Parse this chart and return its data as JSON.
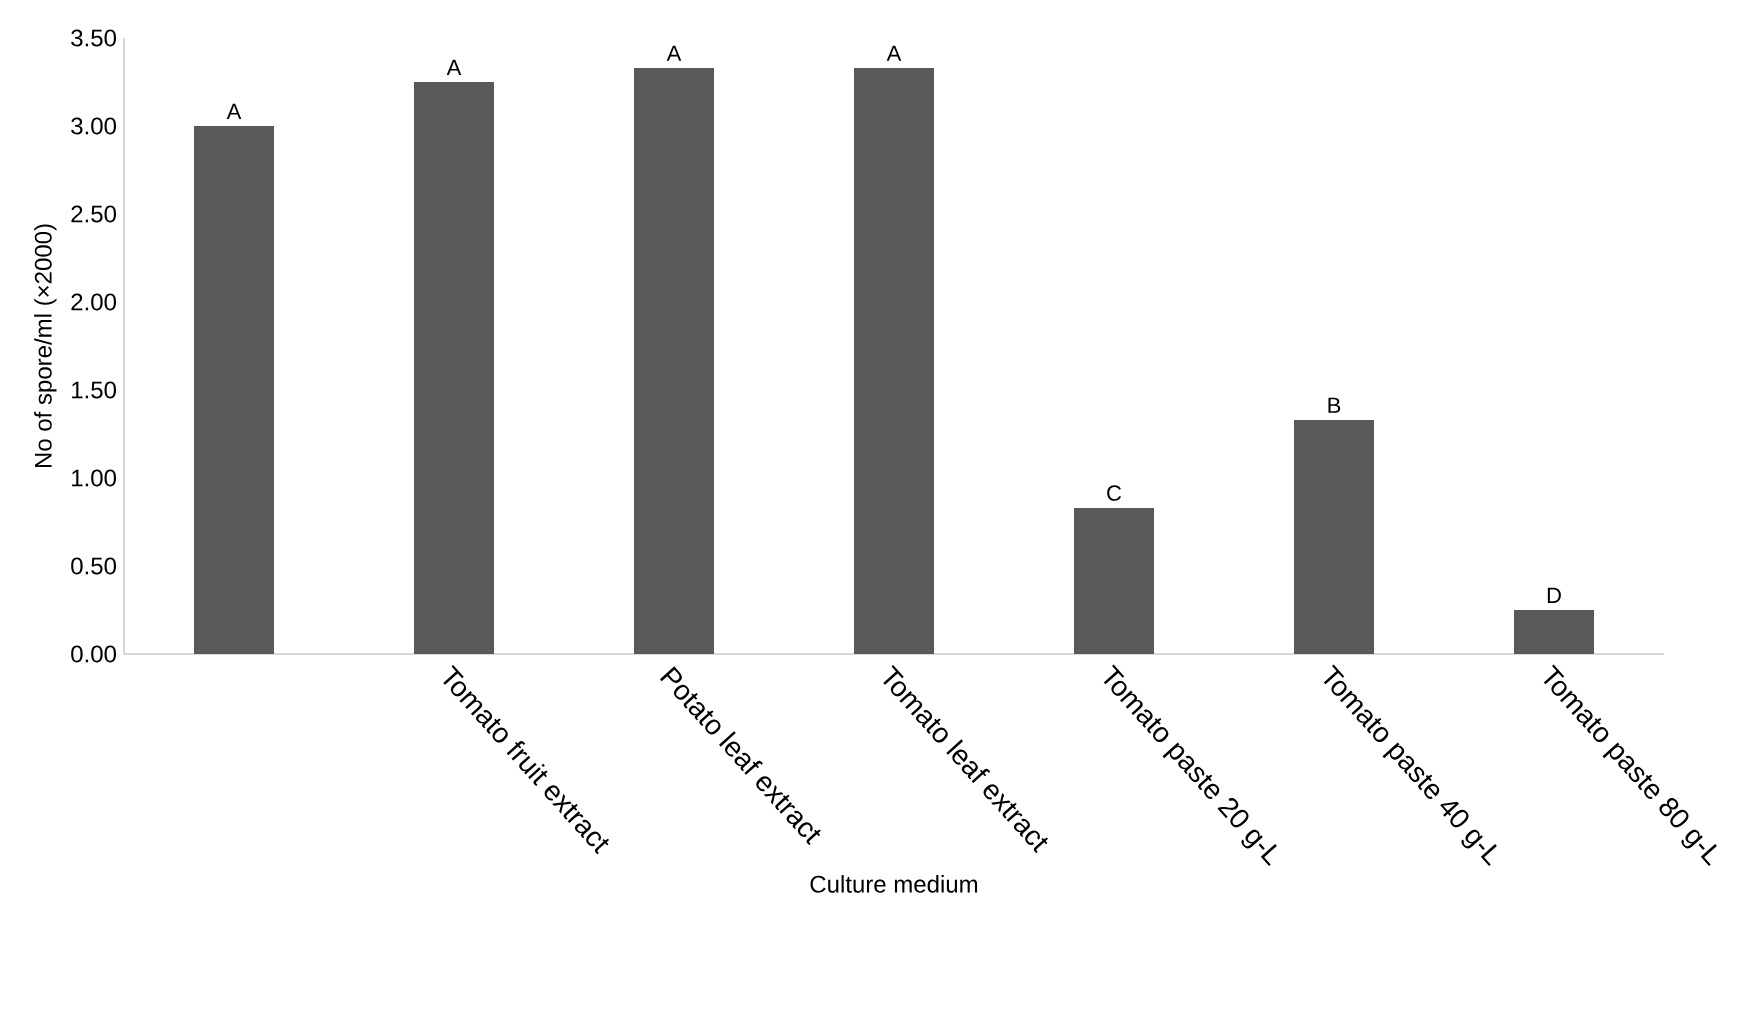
{
  "chart_data": {
    "type": "bar",
    "xlabel": "Culture medium",
    "ylabel": "No of spore/ml (×2000)",
    "categories": [
      null,
      "Tomato fruit extract",
      "Potato leaf extract",
      "Tomato leaf extract",
      "Tomato paste 20 g-L",
      "Tomato paste 40 g-L",
      "Tomato paste 80 g-L"
    ],
    "values": [
      3.0,
      3.25,
      3.33,
      3.33,
      0.83,
      1.33,
      0.25
    ],
    "value_labels": [
      "A",
      "A",
      "A",
      "A",
      "C",
      "B",
      "D"
    ],
    "color": "#595959",
    "ylim": [
      0,
      3.5
    ],
    "yticks": [
      {
        "value": 0,
        "label": "0.00"
      },
      {
        "value": 0.5,
        "label": "0.50"
      },
      {
        "value": 1,
        "label": "1.00"
      },
      {
        "value": 1.5,
        "label": "1.50"
      },
      {
        "value": 2,
        "label": "2.00"
      },
      {
        "value": 2.5,
        "label": "2.50"
      },
      {
        "value": 3,
        "label": "3.00"
      },
      {
        "value": 3.5,
        "label": "3.50"
      }
    ],
    "grid": false
  }
}
